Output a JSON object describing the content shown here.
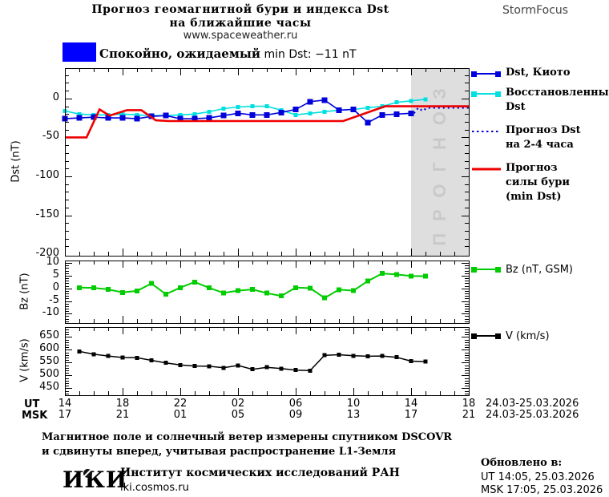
{
  "header": {
    "title_line1": "Прогноз геомагнитной бури и индекса Dst",
    "title_line2": "на ближайшие часы",
    "subtitle": "www.spaceweather.ru",
    "brand": "StormFocus"
  },
  "status": {
    "label_bold": "Спокойно, ожидаемый",
    "label_rest": " min Dst: −11 nT",
    "swatch_color": "#0000ff"
  },
  "chart_data": [
    {
      "type": "line",
      "ylabel": "Dst (nT)",
      "ylim": [
        -202,
        39
      ],
      "x_hours": [
        0,
        28
      ],
      "ytick_values": [
        0,
        -50,
        -100,
        -150,
        -200
      ],
      "ytick_labels": [
        "0",
        "-50",
        "-100",
        "-150",
        "-200"
      ],
      "y_minor_step": 10,
      "x_major_step": 4,
      "forecast_band": {
        "from_hour": 24,
        "to_hour": 28,
        "label": "ПРОГНОЗ"
      },
      "series": [
        {
          "name": "Восстановленный Dst",
          "color": "#00e0e0",
          "width": 1.6,
          "marker_size": 5,
          "x": [
            0,
            1,
            2,
            3,
            4,
            5,
            6,
            7,
            8,
            9,
            10,
            11,
            12,
            13,
            14,
            15,
            16,
            17,
            18,
            19,
            20,
            21,
            22,
            23,
            24,
            25
          ],
          "values": [
            -16,
            -20,
            -21,
            -21,
            -20,
            -21,
            -22,
            -22,
            -21,
            -20,
            -17,
            -13,
            -11,
            -10,
            -10,
            -15,
            -21,
            -19,
            -17,
            -15,
            -14,
            -12,
            -10,
            -5,
            -3,
            -1
          ]
        },
        {
          "name": "Dst, Киото",
          "color": "#0000dd",
          "width": 1.6,
          "marker_size": 7,
          "x": [
            0,
            1,
            2,
            3,
            4,
            5,
            6,
            7,
            8,
            9,
            10,
            11,
            12,
            13,
            14,
            15,
            16,
            17,
            18,
            19,
            20,
            21,
            22,
            23,
            24
          ],
          "values": [
            -26,
            -25,
            -24,
            -25,
            -25,
            -26,
            -23,
            -22,
            -26,
            -26,
            -25,
            -22,
            -19,
            -21,
            -21,
            -18,
            -14,
            -4,
            -2,
            -15,
            -14,
            -31,
            -21,
            -20,
            -19
          ]
        },
        {
          "name": "Прогноз Dst на 2-4 часа",
          "color": "#0000dd",
          "width": 2.2,
          "dash": "2,4",
          "marker_size": 0,
          "x": [
            24.2,
            24.5,
            24.8,
            25.1,
            28
          ],
          "values": [
            -19,
            -12,
            -16,
            -12,
            -12
          ]
        },
        {
          "name": "Прогноз силы бури (min Dst)",
          "color": "#ee0000",
          "width": 2.6,
          "marker_size": 0,
          "x": [
            0,
            1.5,
            2.4,
            3.1,
            4.3,
            5.3,
            6.3,
            7.2,
            19.3,
            22.2,
            28
          ],
          "values": [
            -50,
            -50,
            -14,
            -22,
            -15,
            -15,
            -28,
            -29,
            -29,
            -10,
            -10
          ]
        }
      ]
    },
    {
      "type": "line",
      "ylabel": "Bz (nT)",
      "ylim": [
        -13.7,
        11
      ],
      "x_hours": [
        0,
        28
      ],
      "ytick_values": [
        10,
        5,
        0,
        -5,
        -10
      ],
      "ytick_labels": [
        "10",
        "5",
        "0",
        "-5",
        "-10"
      ],
      "y_minor_step": 1,
      "x_major_step": 4,
      "series": [
        {
          "name": "Bz (nT, GSM)",
          "color": "#00cc00",
          "width": 2,
          "marker_size": 6,
          "x": [
            1,
            2,
            3,
            4,
            5,
            6,
            7,
            8,
            9,
            10,
            11,
            12,
            13,
            14,
            15,
            16,
            17,
            18,
            19,
            20,
            21,
            22,
            23,
            24,
            25
          ],
          "values": [
            0.3,
            0.2,
            -0.4,
            -1.6,
            -1.0,
            1.9,
            -2.3,
            0.3,
            2.5,
            0.2,
            -1.8,
            -0.9,
            -0.4,
            -1.9,
            -3.0,
            0.3,
            0.1,
            -3.8,
            -0.5,
            -0.9,
            2.9,
            5.9,
            5.5,
            4.9,
            4.8
          ]
        }
      ]
    },
    {
      "type": "line",
      "ylabel": "V (km/s)",
      "ylim": [
        423,
        689
      ],
      "x_hours": [
        0,
        28
      ],
      "ytick_values": [
        650,
        600,
        550,
        500,
        450
      ],
      "ytick_labels": [
        "650",
        "600",
        "550",
        "500",
        "450"
      ],
      "y_minor_step": 10,
      "x_major_step": 4,
      "series": [
        {
          "name": "V (km/s)",
          "color": "#000000",
          "width": 1.5,
          "marker_size": 5,
          "x": [
            1,
            2,
            3,
            4,
            5,
            6,
            7,
            8,
            9,
            10,
            11,
            12,
            13,
            14,
            15,
            16,
            17,
            18,
            19,
            20,
            21,
            22,
            23,
            24,
            25
          ],
          "values": [
            594,
            583,
            576,
            570,
            569,
            559,
            549,
            541,
            537,
            536,
            530,
            539,
            524,
            532,
            527,
            521,
            519,
            579,
            581,
            577,
            575,
            576,
            571,
            556,
            554
          ]
        }
      ]
    }
  ],
  "legends": {
    "main": [
      {
        "lines": [
          "Dst, Киото"
        ],
        "color": "#0000dd",
        "style": "solid-squares"
      },
      {
        "lines": [
          "Восстановленный",
          "Dst"
        ],
        "color": "#00e0e0",
        "style": "solid-squares"
      },
      {
        "lines": [
          "Прогноз Dst",
          "на 2-4 часа"
        ],
        "color": "#0000dd",
        "style": "dotted"
      },
      {
        "lines": [
          "Прогноз",
          "силы бури",
          "(min Dst)"
        ],
        "color": "#ee0000",
        "style": "solid"
      }
    ],
    "bz": {
      "label": "Bz (nT, GSM)",
      "color": "#00cc00",
      "style": "solid-squares"
    },
    "v": {
      "label": "V (km/s)",
      "color": "#000000",
      "style": "solid-squares"
    }
  },
  "xaxis": {
    "ut_label": "UT",
    "msk_label": "MSK",
    "ut_hours": [
      "14",
      "18",
      "22",
      "02",
      "06",
      "10",
      "14",
      "18"
    ],
    "msk_hours": [
      "17",
      "21",
      "01",
      "05",
      "09",
      "13",
      "17",
      "21"
    ],
    "ut_date": "24.03-25.03.2026",
    "msk_date": "24.03-25.03.2026"
  },
  "footer": {
    "note_line1": "Магнитное поле и солнечный ветер измерены спутником DSCOVR",
    "note_line2": "и сдвинуты вперед, учитывая распространение L1-Земля",
    "logo_text": "ИКИ",
    "institute": "Институт космических исследований РАН",
    "site": "iki.cosmos.ru",
    "updated_label": "Обновлено в:",
    "updated_ut": "UT  14:05, 25.03.2026",
    "updated_msk": "MSK 17:05, 25.03.2026"
  },
  "colors": {
    "background": "#ffffff",
    "axis": "#000000",
    "forecast_band": "#dedede",
    "band_text": "#c9c9c9",
    "kyoto_blue": "#0000dd",
    "restored_cyan": "#00e0e0",
    "forecast_red": "#ee0000",
    "bz_green": "#00cc00",
    "status_blue": "#0000ff"
  }
}
